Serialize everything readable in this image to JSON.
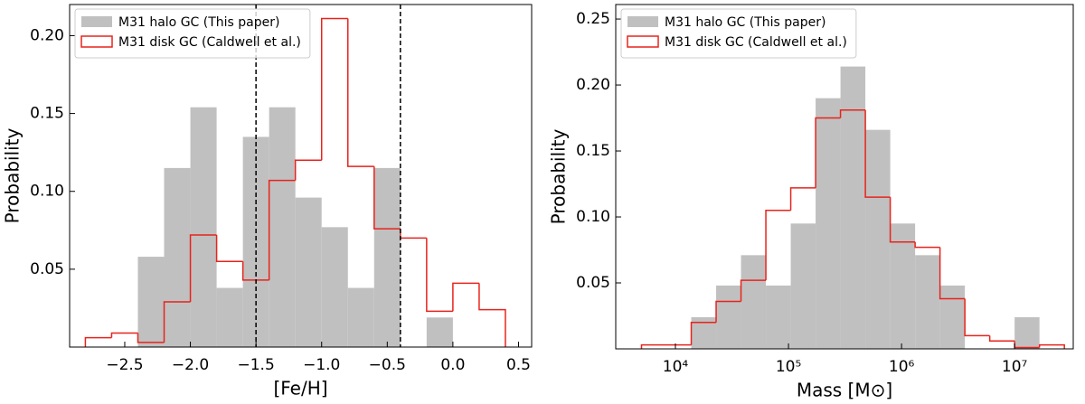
{
  "chart_data": [
    {
      "type": "histogram",
      "xlabel": "[Fe/H]",
      "ylabel": "Probability",
      "xlim": [
        -2.92,
        0.6
      ],
      "ylim": [
        0,
        0.22
      ],
      "xticks": [
        {
          "value": -2.5,
          "label": "−2.5"
        },
        {
          "value": -2.0,
          "label": "−2.0"
        },
        {
          "value": -1.5,
          "label": "−1.5"
        },
        {
          "value": -1.0,
          "label": "−1.0"
        },
        {
          "value": -0.5,
          "label": "−0.5"
        },
        {
          "value": 0.0,
          "label": "0.0"
        },
        0.5
      ],
      "yticks": [
        0.05,
        {
          "value": 0.1,
          "label": "0.10"
        },
        0.15,
        {
          "value": 0.2,
          "label": "0.20"
        }
      ],
      "vlines": [
        -1.5,
        -0.4
      ],
      "legend": "upper left",
      "series": [
        {
          "name": "M31 halo GC (This paper)",
          "color": "#c0c0c0",
          "style": "filled",
          "bins": [
            -2.4,
            -2.2,
            -2.0,
            -1.8,
            -1.6,
            -1.4,
            -1.2,
            -1.0,
            -0.8,
            -0.6,
            -0.4,
            -0.2,
            0.0
          ],
          "values": [
            0.058,
            0.115,
            0.154,
            0.038,
            0.135,
            0.154,
            0.096,
            0.077,
            0.038,
            0.115,
            0,
            0.019
          ]
        },
        {
          "name": "M31 disk GC (Caldwell et al.)",
          "color": "#e8231c",
          "style": "step",
          "bins": [
            -2.8,
            -2.6,
            -2.4,
            -2.2,
            -2.0,
            -1.8,
            -1.6,
            -1.4,
            -1.2,
            -1.0,
            -0.8,
            -0.6,
            -0.4,
            -0.2,
            0.0,
            0.2,
            0.4
          ],
          "values": [
            0.006,
            0.009,
            0.003,
            0.029,
            0.072,
            0.055,
            0.043,
            0.107,
            0.12,
            0.211,
            0.116,
            0.076,
            0.07,
            0.023,
            0.041,
            0.024
          ]
        }
      ]
    },
    {
      "type": "histogram",
      "xlabel": "Mass [M⊙]",
      "ylabel": "Probability",
      "xscale": "log",
      "xlim": [
        2966,
        33000000
      ],
      "ylim": [
        0,
        0.261
      ],
      "xticks": [
        {
          "value": 10000,
          "label": "10⁴"
        },
        {
          "value": 100000,
          "label": "10⁵"
        },
        {
          "value": 1000000,
          "label": "10⁶"
        },
        {
          "value": 10000000,
          "label": "10⁷"
        }
      ],
      "yticks": [
        0.05,
        {
          "value": 0.1,
          "label": "0.10"
        },
        0.15,
        {
          "value": 0.2,
          "label": "0.20"
        },
        0.25
      ],
      "legend": "upper left",
      "series": [
        {
          "name": "M31 halo GC (This paper)",
          "color": "#c0c0c0",
          "style": "filled",
          "bins": [
            5012,
            8318,
            13804,
            22909,
            38019,
            63096,
            104713,
            173780,
            288403,
            478630,
            794328,
            1318257,
            2187762,
            3630781,
            6025596,
            10000000,
            16595869,
            27542287
          ],
          "values": [
            0,
            0,
            0.024,
            0.048,
            0.071,
            0.048,
            0.095,
            0.19,
            0.214,
            0.166,
            0.095,
            0.071,
            0.048,
            0,
            0,
            0.024,
            0
          ]
        },
        {
          "name": "M31 disk GC (Caldwell et al.)",
          "color": "#e8231c",
          "style": "step",
          "bins": [
            5012,
            8318,
            13804,
            22909,
            38019,
            63096,
            104713,
            173780,
            288403,
            478630,
            794328,
            1318257,
            2187762,
            3630781,
            6025596,
            10000000,
            16595869,
            27542287
          ],
          "values": [
            0.003,
            0.003,
            0.02,
            0.036,
            0.052,
            0.105,
            0.122,
            0.175,
            0.181,
            0.115,
            0.081,
            0.077,
            0.038,
            0.01,
            0.006,
            0.001,
            0.003
          ]
        }
      ]
    }
  ]
}
